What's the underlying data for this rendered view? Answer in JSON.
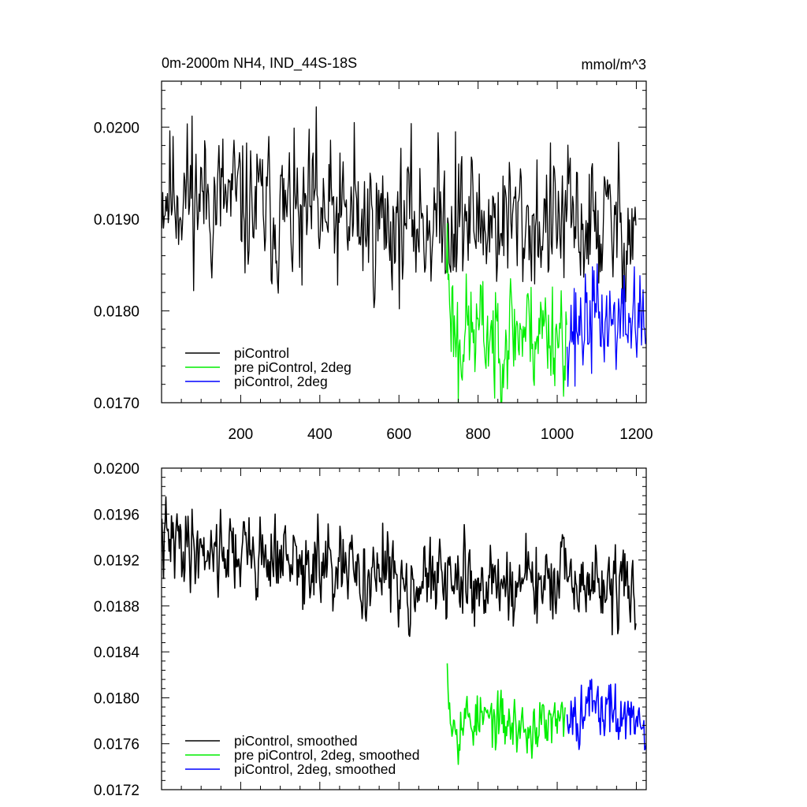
{
  "colors": {
    "piControl": "#000000",
    "pre_piControl_2deg": "#00ee00",
    "piControl_2deg": "#0000ff"
  },
  "chart_data": [
    {
      "type": "line",
      "title": "0m-2000m NH4, IND_44S-18S",
      "units": "mmol/m^3",
      "xlim": [
        0,
        1225
      ],
      "ylim": [
        0.017,
        0.0205
      ],
      "x_ticks": [
        200,
        400,
        600,
        800,
        1000,
        1200
      ],
      "x_tick_labels": [
        "200",
        "400",
        "600",
        "800",
        "1000",
        "1200"
      ],
      "y_ticks": [
        0.017,
        0.018,
        0.019,
        0.02
      ],
      "y_tick_labels": [
        "0.0170",
        "0.0180",
        "0.0190",
        "0.0200"
      ],
      "legend_position": "bottom-left",
      "series": [
        {
          "name": "piControl",
          "color": "#000000",
          "x_range": [
            1,
            1200
          ],
          "noise": 0.00055,
          "seed": 11,
          "trend": [
            [
              1,
              0.01935
            ],
            [
              150,
              0.0192
            ],
            [
              300,
              0.01905
            ],
            [
              500,
              0.01895
            ],
            [
              700,
              0.019
            ],
            [
              1000,
              0.01895
            ],
            [
              1200,
              0.0189
            ]
          ],
          "extremes": [
            [
              392,
              0.02022
            ],
            [
              78,
              0.02012
            ],
            [
              487,
              0.02005
            ],
            [
              355,
              0.01828
            ],
            [
              744,
              0.01995
            ]
          ]
        },
        {
          "name": "pre piControl, 2deg",
          "color": "#00ee00",
          "x_range": [
            720,
            1025
          ],
          "noise": 0.00045,
          "seed": 23,
          "trend": [
            [
              720,
              0.0186
            ],
            [
              740,
              0.0178
            ],
            [
              800,
              0.01775
            ],
            [
              900,
              0.0178
            ],
            [
              1025,
              0.0178
            ]
          ],
          "extremes": [
            [
              722,
              0.01895
            ],
            [
              750,
              0.017
            ],
            [
              842,
              0.01705
            ]
          ]
        },
        {
          "name": "piControl, 2deg",
          "color": "#0000ff",
          "x_range": [
            1025,
            1225
          ],
          "noise": 0.0004,
          "seed": 37,
          "trend": [
            [
              1025,
              0.01785
            ],
            [
              1100,
              0.0179
            ],
            [
              1225,
              0.01785
            ]
          ],
          "extremes": [
            [
              1090,
              0.01848
            ],
            [
              1195,
              0.01848
            ],
            [
              1045,
              0.01718
            ]
          ]
        }
      ]
    },
    {
      "type": "line",
      "xlim": [
        0,
        1225
      ],
      "ylim": [
        0.0172,
        0.02
      ],
      "x_ticks": [
        200,
        400,
        600,
        800,
        1000,
        1200
      ],
      "y_ticks": [
        0.0172,
        0.0176,
        0.018,
        0.0184,
        0.0188,
        0.0192,
        0.0196,
        0.02
      ],
      "y_tick_labels": [
        "0.0172",
        "0.0176",
        "0.0180",
        "0.0184",
        "0.0188",
        "0.0192",
        "0.0196",
        "0.0200"
      ],
      "legend_position": "bottom-left",
      "series": [
        {
          "name": "piControl, smoothed",
          "color": "#000000",
          "x_range": [
            1,
            1200
          ],
          "noise": 0.00025,
          "seed": 41,
          "trend": [
            [
              1,
              0.01935
            ],
            [
              150,
              0.0193
            ],
            [
              300,
              0.0192
            ],
            [
              400,
              0.0191
            ],
            [
              550,
              0.01905
            ],
            [
              700,
              0.019
            ],
            [
              1000,
              0.019
            ],
            [
              1200,
              0.01895
            ]
          ],
          "extremes": [
            [
              62,
              0.01958
            ],
            [
              395,
              0.0196
            ],
            [
              287,
              0.0196
            ],
            [
              560,
              0.01952
            ],
            [
              357,
              0.01877
            ],
            [
              950,
              0.01865
            ],
            [
              1185,
              0.01866
            ]
          ]
        },
        {
          "name": "pre piControl, 2deg, smoothed",
          "color": "#00ee00",
          "x_range": [
            722,
            1020
          ],
          "noise": 0.00018,
          "seed": 53,
          "trend": [
            [
              722,
              0.0182
            ],
            [
              735,
              0.0178
            ],
            [
              800,
              0.01782
            ],
            [
              900,
              0.01775
            ],
            [
              1020,
              0.01775
            ]
          ],
          "extremes": [
            [
              722,
              0.0183
            ],
            [
              750,
              0.01742
            ],
            [
              925,
              0.01752
            ],
            [
              850,
              0.01806
            ]
          ]
        },
        {
          "name": "piControl, 2deg, smoothed",
          "color": "#0000ff",
          "x_range": [
            1025,
            1225
          ],
          "noise": 0.00018,
          "seed": 67,
          "trend": [
            [
              1025,
              0.0179
            ],
            [
              1100,
              0.0179
            ],
            [
              1225,
              0.01775
            ]
          ],
          "extremes": [
            [
              1062,
              0.01811
            ],
            [
              1148,
              0.01812
            ],
            [
              1055,
              0.01755
            ],
            [
              1185,
              0.01768
            ]
          ]
        }
      ]
    }
  ]
}
